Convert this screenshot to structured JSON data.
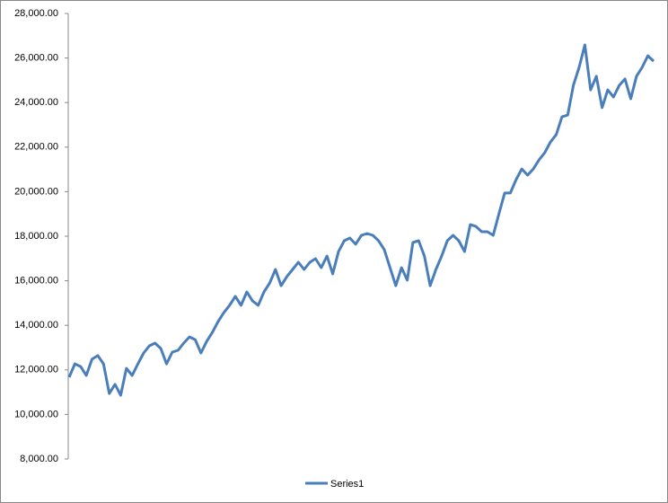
{
  "chart_data": {
    "type": "line",
    "ylim": [
      8000,
      28000
    ],
    "yticks": [
      {
        "value": 8000,
        "label": "8,000.00"
      },
      {
        "value": 10000,
        "label": "10,000.00"
      },
      {
        "value": 12000,
        "label": "12,000.00"
      },
      {
        "value": 14000,
        "label": "14,000.00"
      },
      {
        "value": 16000,
        "label": "16,000.00"
      },
      {
        "value": 18000,
        "label": "18,000.00"
      },
      {
        "value": 20000,
        "label": "20,000.00"
      },
      {
        "value": 22000,
        "label": "22,000.00"
      },
      {
        "value": 24000,
        "label": "24,000.00"
      },
      {
        "value": 26000,
        "label": "26,000.00"
      },
      {
        "value": 28000,
        "label": "28,000.00"
      }
    ],
    "grid": false,
    "legend": "bottom",
    "series": [
      {
        "name": "Series1",
        "color": "#4a7ebb",
        "values": [
          11670,
          12270,
          12150,
          11750,
          12480,
          12640,
          12270,
          10940,
          11350,
          10860,
          12070,
          11750,
          12270,
          12760,
          13080,
          13200,
          12960,
          12270,
          12800,
          12880,
          13200,
          13480,
          13360,
          12760,
          13280,
          13690,
          14170,
          14570,
          14900,
          15300,
          14900,
          15500,
          15100,
          14900,
          15500,
          15900,
          16510,
          15780,
          16190,
          16510,
          16830,
          16510,
          16830,
          16990,
          16590,
          17110,
          16310,
          17310,
          17800,
          17920,
          17640,
          18040,
          18120,
          18040,
          17800,
          17400,
          16590,
          15780,
          16590,
          16030,
          17720,
          17800,
          17110,
          15780,
          16510,
          17110,
          17800,
          18040,
          17800,
          17310,
          18520,
          18440,
          18200,
          18200,
          18040,
          19010,
          19940,
          19940,
          20540,
          21020,
          20740,
          21020,
          21430,
          21750,
          22230,
          22560,
          23360,
          23440,
          24770,
          25580,
          26590,
          24570,
          25180,
          23770,
          24570,
          24250,
          24770,
          25060,
          24170,
          25180,
          25580,
          26100,
          25860
        ]
      }
    ]
  }
}
